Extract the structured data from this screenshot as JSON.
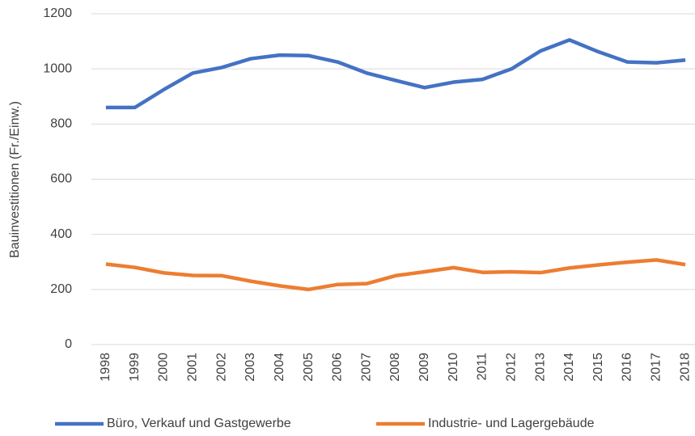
{
  "chart_data": {
    "type": "line",
    "y_label": "Bauinvestitionen (Fr./Einw.)",
    "categories": [
      "1998",
      "1999",
      "2000",
      "2001",
      "2002",
      "2003",
      "2004",
      "2005",
      "2006",
      "2007",
      "2008",
      "2009",
      "2010",
      "2011",
      "2012",
      "2013",
      "2014",
      "2015",
      "2016",
      "2017",
      "2018"
    ],
    "series": [
      {
        "name": "Büro, Verkauf und Gastgewerbe",
        "color": "#4472c4",
        "values": [
          860,
          860,
          925,
          985,
          1005,
          1037,
          1050,
          1048,
          1025,
          985,
          958,
          932,
          952,
          962,
          1000,
          1065,
          1105,
          1062,
          1025,
          1022,
          1032
        ]
      },
      {
        "name": "Industrie- und Lagergebäude",
        "color": "#ed7d31",
        "values": [
          292,
          280,
          260,
          251,
          250,
          230,
          213,
          200,
          218,
          221,
          250,
          264,
          279,
          262,
          264,
          261,
          278,
          289,
          299,
          307,
          290
        ]
      }
    ],
    "ylim": [
      0,
      1200
    ],
    "yticks": [
      0,
      200,
      400,
      600,
      800,
      1000,
      1200
    ],
    "grid": true,
    "legend": "bottom"
  }
}
